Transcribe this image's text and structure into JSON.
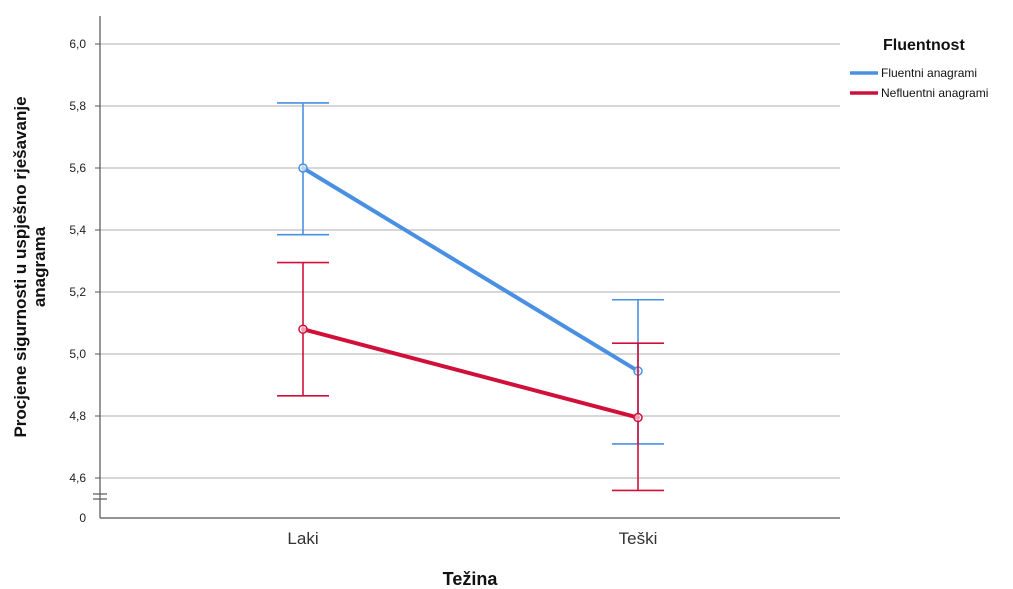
{
  "chart_data": {
    "type": "line",
    "xlabel": "Težina",
    "ylabel": "Procjene sigurnosti u uspješno rješavanje anagrama",
    "ylabel_lines": [
      "Procjene sigurnosti u uspješno rješavanje",
      "anagrama"
    ],
    "categories": [
      "Laki",
      "Teški"
    ],
    "y_ticks": [
      "4,6",
      "4,8",
      "5,0",
      "5,2",
      "5,4",
      "5,6",
      "5,8",
      "6,0"
    ],
    "y_tick_values": [
      4.6,
      4.8,
      5.0,
      5.2,
      5.4,
      5.6,
      5.8,
      6.0
    ],
    "y_zero_label": "0",
    "ylim": [
      4.5,
      6.0
    ],
    "axis_break": true,
    "grid": true,
    "legend": {
      "title": "Fluentnost",
      "placement": "top-right"
    },
    "series": [
      {
        "name": "Fluentni anagrami",
        "color": "#4a90e2",
        "values": [
          5.6,
          4.945
        ],
        "error_low": [
          5.385,
          4.71
        ],
        "error_high": [
          5.81,
          5.175
        ]
      },
      {
        "name": "Nefluentni anagrami",
        "color": "#d0103a",
        "values": [
          5.08,
          4.795
        ],
        "error_low": [
          4.865,
          4.56
        ],
        "error_high": [
          5.295,
          5.035
        ]
      }
    ]
  }
}
